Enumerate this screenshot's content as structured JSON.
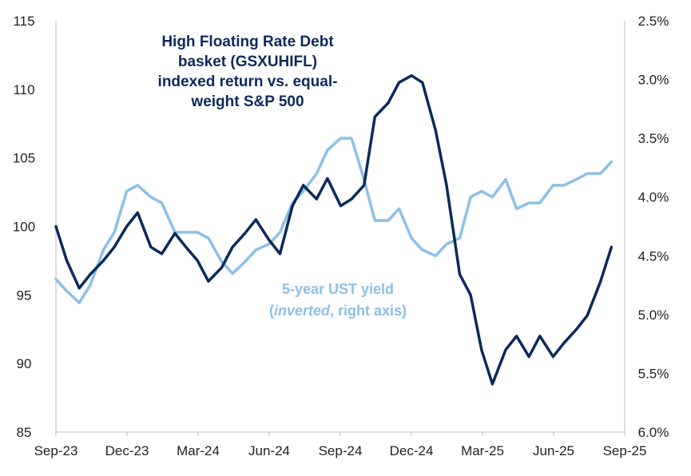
{
  "chart_data": {
    "type": "line",
    "title": "",
    "x_ticks": [
      "Sep-23",
      "Dec-23",
      "Mar-24",
      "Jun-24",
      "Sep-24",
      "Dec-24",
      "Mar-25",
      "Jun-25",
      "Sep-25"
    ],
    "y_left": {
      "ticks": [
        "115",
        "110",
        "105",
        "100",
        "95",
        "90",
        "85"
      ],
      "min": 85,
      "max": 115
    },
    "y_right": {
      "ticks": [
        "2.5%",
        "3.0%",
        "3.5%",
        "4.0%",
        "4.5%",
        "5.0%",
        "5.5%",
        "6.0%"
      ],
      "min": 2.5,
      "max": 6.0,
      "inverted": true
    },
    "annotations": {
      "dark_lines": [
        "High Floating Rate Debt",
        "basket (GSXUHIFL)",
        "indexed return vs. equal-",
        "weight S&P 500"
      ],
      "light_line1": "5-year UST yield",
      "light_line2_italic": "inverted",
      "light_line2_rest": ", right axis)",
      "light_line2_open": "("
    },
    "series": [
      {
        "name": "High Floating Rate Debt basket (GSXUHIFL) indexed return vs. equal-weight S&P 500",
        "axis": "left",
        "color": "#0b2a5b",
        "x": [
          "2023-09-01",
          "2023-09-15",
          "2023-10-01",
          "2023-10-15",
          "2023-11-01",
          "2023-11-15",
          "2023-12-01",
          "2023-12-15",
          "2024-01-01",
          "2024-01-15",
          "2024-02-01",
          "2024-02-15",
          "2024-03-01",
          "2024-03-15",
          "2024-04-01",
          "2024-04-15",
          "2024-05-01",
          "2024-05-15",
          "2024-06-01",
          "2024-06-15",
          "2024-07-01",
          "2024-07-15",
          "2024-08-01",
          "2024-08-15",
          "2024-09-01",
          "2024-09-15",
          "2024-10-01",
          "2024-10-15",
          "2024-11-01",
          "2024-11-15",
          "2024-12-01",
          "2024-12-15",
          "2025-01-01",
          "2025-01-15",
          "2025-02-01",
          "2025-02-15",
          "2025-03-01",
          "2025-03-15",
          "2025-04-01",
          "2025-04-15",
          "2025-05-01",
          "2025-05-15",
          "2025-06-01",
          "2025-06-15",
          "2025-07-01",
          "2025-07-15",
          "2025-08-01",
          "2025-08-15"
        ],
        "y": [
          100.0,
          97.5,
          95.5,
          96.5,
          97.5,
          98.5,
          100.0,
          101.0,
          98.5,
          98.0,
          99.5,
          98.5,
          97.5,
          96.0,
          97.0,
          98.5,
          99.5,
          100.5,
          99.0,
          98.0,
          101.5,
          103.0,
          102.0,
          103.5,
          101.5,
          102.0,
          103.0,
          108.0,
          109.0,
          110.5,
          111.0,
          110.5,
          107.0,
          103.0,
          96.5,
          95.0,
          91.0,
          88.5,
          91.0,
          92.0,
          90.5,
          92.0,
          90.5,
          91.5,
          92.5,
          93.5,
          96.0,
          98.5
        ]
      },
      {
        "name": "5-year UST yield",
        "axis": "right",
        "color": "#8cc0e6",
        "x": [
          "2023-09-01",
          "2023-09-15",
          "2023-10-01",
          "2023-10-15",
          "2023-11-01",
          "2023-11-15",
          "2023-12-01",
          "2023-12-15",
          "2024-01-01",
          "2024-01-15",
          "2024-02-01",
          "2024-02-15",
          "2024-03-01",
          "2024-03-15",
          "2024-04-01",
          "2024-04-15",
          "2024-05-01",
          "2024-05-15",
          "2024-06-01",
          "2024-06-15",
          "2024-07-01",
          "2024-07-15",
          "2024-08-01",
          "2024-08-15",
          "2024-09-01",
          "2024-09-15",
          "2024-10-01",
          "2024-10-15",
          "2024-11-01",
          "2024-11-15",
          "2024-12-01",
          "2024-12-15",
          "2025-01-01",
          "2025-01-15",
          "2025-02-01",
          "2025-02-15",
          "2025-03-01",
          "2025-03-15",
          "2025-04-01",
          "2025-04-15",
          "2025-05-01",
          "2025-05-15",
          "2025-06-01",
          "2025-06-15",
          "2025-07-01",
          "2025-07-15",
          "2025-08-01",
          "2025-08-15"
        ],
        "y": [
          4.7,
          4.8,
          4.9,
          4.75,
          4.45,
          4.3,
          3.95,
          3.9,
          4.0,
          4.05,
          4.3,
          4.3,
          4.3,
          4.35,
          4.55,
          4.65,
          4.55,
          4.45,
          4.4,
          4.3,
          4.05,
          3.95,
          3.8,
          3.6,
          3.5,
          3.5,
          3.85,
          4.2,
          4.2,
          4.1,
          4.35,
          4.45,
          4.5,
          4.4,
          4.35,
          4.0,
          3.95,
          4.0,
          3.85,
          4.1,
          4.05,
          4.05,
          3.9,
          3.9,
          3.85,
          3.8,
          3.8,
          3.7
        ]
      }
    ]
  }
}
